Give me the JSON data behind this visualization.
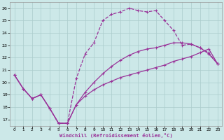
{
  "title": "Windchill (Refroidissement éolien,°C)",
  "bg_color": "#cce8e8",
  "grid_color": "#aacccc",
  "line_color": "#993399",
  "xlim": [
    -0.5,
    23.5
  ],
  "ylim": [
    16.5,
    26.5
  ],
  "xticks": [
    0,
    1,
    2,
    3,
    4,
    5,
    6,
    7,
    8,
    9,
    10,
    11,
    12,
    13,
    14,
    15,
    16,
    17,
    18,
    19,
    20,
    21,
    22,
    23
  ],
  "yticks": [
    17,
    18,
    19,
    20,
    21,
    22,
    23,
    24,
    25,
    26
  ],
  "line1_x": [
    0,
    1,
    2,
    3,
    4,
    5,
    6,
    7,
    8,
    9,
    10,
    11,
    12,
    13,
    14,
    15,
    16,
    17,
    18,
    19,
    20,
    21,
    22,
    23
  ],
  "line1_y": [
    20.6,
    19.5,
    18.7,
    19.0,
    17.9,
    16.7,
    16.7,
    20.3,
    22.3,
    23.2,
    25.0,
    25.5,
    25.7,
    26.0,
    25.8,
    25.7,
    25.8,
    25.0,
    24.2,
    23.0,
    23.1,
    22.8,
    22.4,
    21.5
  ],
  "line2_x": [
    0,
    1,
    2,
    3,
    4,
    5,
    6,
    7,
    8,
    9,
    10,
    11,
    12,
    13,
    14,
    15,
    16,
    17,
    18,
    19,
    20,
    21,
    22,
    23
  ],
  "line2_y": [
    20.6,
    19.5,
    18.7,
    19.0,
    17.9,
    16.7,
    16.7,
    18.2,
    19.2,
    20.0,
    20.7,
    21.3,
    21.8,
    22.2,
    22.5,
    22.7,
    22.8,
    23.0,
    23.2,
    23.2,
    23.1,
    22.8,
    22.3,
    21.5
  ],
  "line3_x": [
    0,
    1,
    2,
    3,
    4,
    5,
    6,
    7,
    8,
    9,
    10,
    11,
    12,
    13,
    14,
    15,
    16,
    17,
    18,
    19,
    20,
    21,
    22,
    23
  ],
  "line3_y": [
    20.6,
    19.5,
    18.7,
    19.0,
    17.9,
    16.7,
    16.7,
    18.2,
    18.9,
    19.4,
    19.8,
    20.1,
    20.4,
    20.6,
    20.8,
    21.0,
    21.2,
    21.4,
    21.7,
    21.9,
    22.1,
    22.4,
    22.7,
    21.5
  ]
}
